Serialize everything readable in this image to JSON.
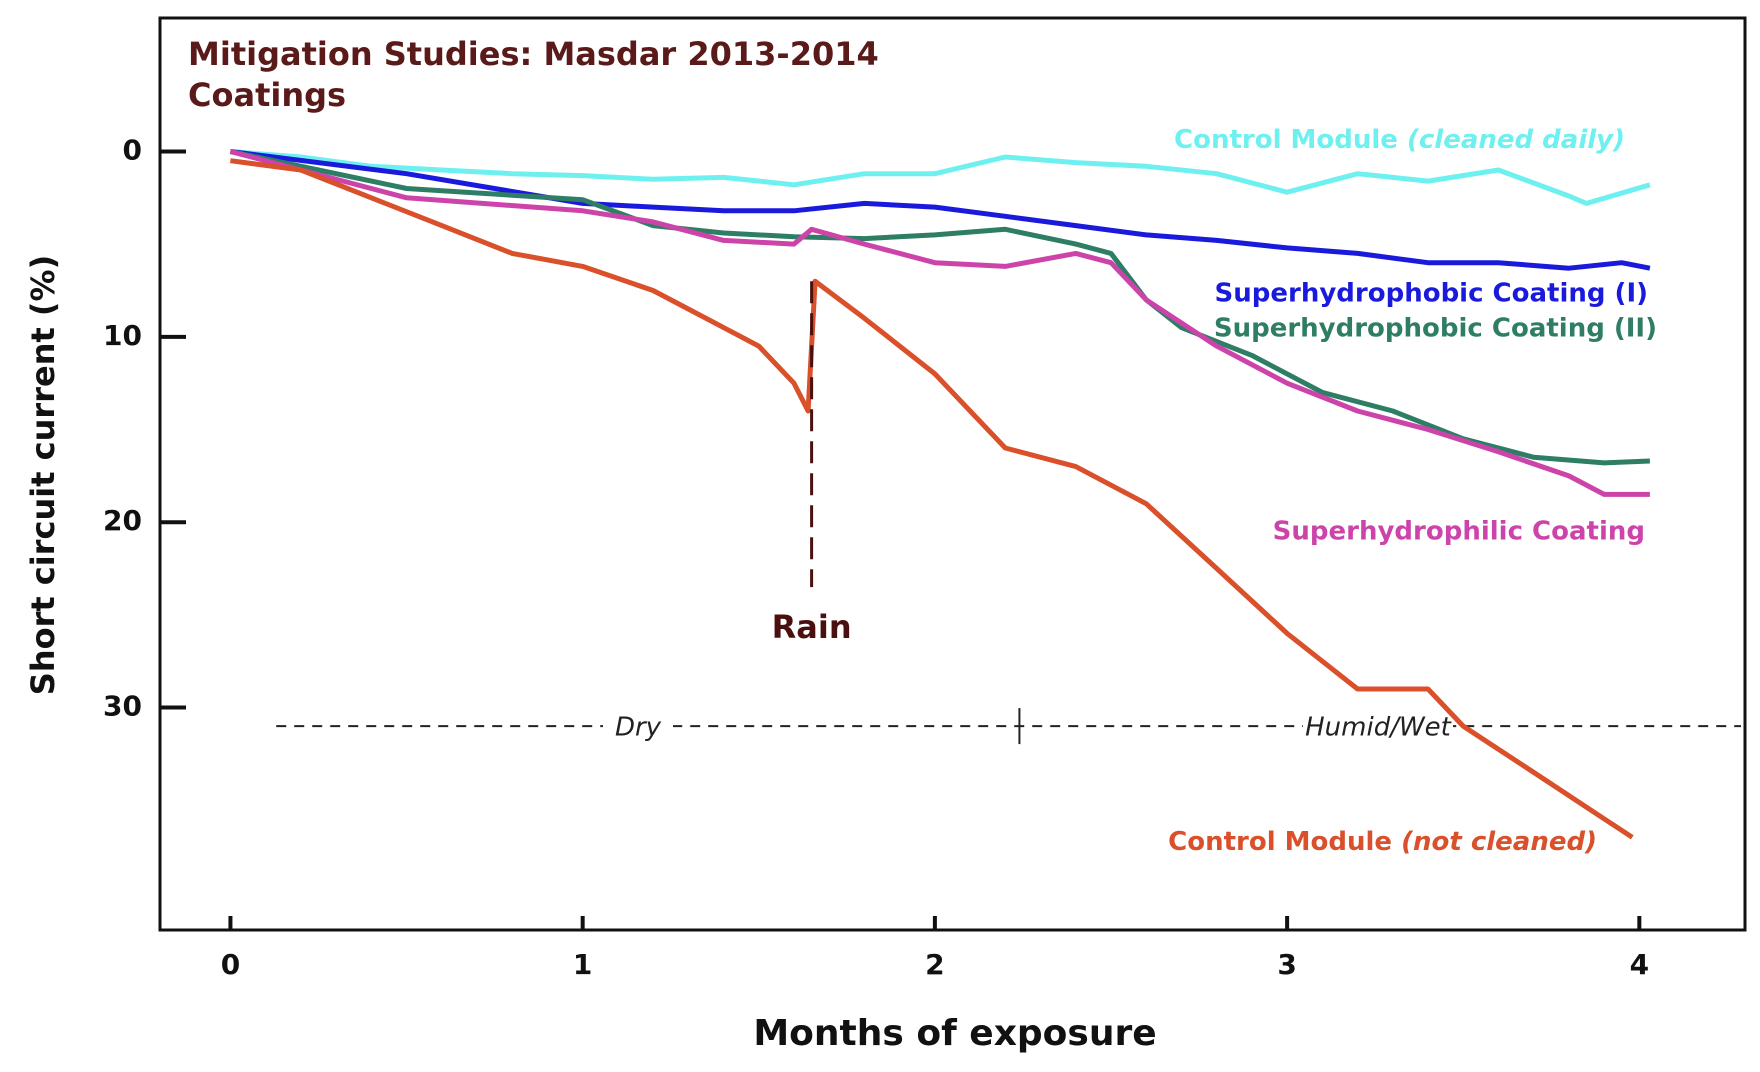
{
  "chart_data": {
    "type": "line",
    "title": "Mitigation Studies: Masdar 2013-2014",
    "subtitle": "Coatings",
    "x_label": "Months of exposure",
    "y_label": "Short circuit current (%)",
    "xlim": [
      -0.2,
      4.3
    ],
    "ylim": [
      -7.2,
      42
    ],
    "y_inverted": true,
    "xticks": [
      0,
      1,
      2,
      3,
      4
    ],
    "yticks": [
      0,
      10,
      20,
      30
    ],
    "rain": {
      "text": "Rain",
      "x": 1.65,
      "y_from": 7,
      "y_to": 23.5
    },
    "seasons": {
      "labels": [
        "Dry",
        "Humid/Wet"
      ],
      "boundary_x": 2.24,
      "y": 31,
      "x_from": 0.13
    },
    "series": [
      {
        "name": "Control Module (cleaned daily)",
        "color": "#6ef0f0",
        "x": [
          0,
          0.2,
          0.4,
          0.6,
          0.8,
          1.0,
          1.2,
          1.4,
          1.6,
          1.8,
          2.0,
          2.2,
          2.4,
          2.6,
          2.8,
          3.0,
          3.2,
          3.4,
          3.6,
          3.8,
          3.85,
          4.03
        ],
        "values": [
          0,
          0.3,
          0.8,
          1,
          1.2,
          1.3,
          1.5,
          1.4,
          1.8,
          1.2,
          1.2,
          0.3,
          0.6,
          0.8,
          1.2,
          2.2,
          1.2,
          1.6,
          1.0,
          2.4,
          2.8,
          1.8
        ]
      },
      {
        "name": "Superhydrophobic Coating (I)",
        "color": "#1a1adc",
        "x": [
          0,
          0.5,
          1.0,
          1.2,
          1.4,
          1.6,
          1.8,
          2.0,
          2.2,
          2.4,
          2.6,
          2.8,
          3.0,
          3.2,
          3.4,
          3.6,
          3.8,
          3.95,
          4.03
        ],
        "values": [
          0,
          1.2,
          2.8,
          3,
          3.2,
          3.2,
          2.8,
          3,
          3.5,
          4,
          4.5,
          4.8,
          5.2,
          5.5,
          6,
          6,
          6.3,
          6,
          6.3
        ]
      },
      {
        "name": "Superhydrophobic Coating (II)",
        "color": "#2e7d65",
        "x": [
          0,
          0.5,
          1.0,
          1.2,
          1.4,
          1.6,
          1.8,
          2.0,
          2.2,
          2.4,
          2.5,
          2.6,
          2.7,
          2.9,
          3.1,
          3.3,
          3.5,
          3.7,
          3.9,
          4.03
        ],
        "values": [
          0,
          2,
          2.6,
          4,
          4.4,
          4.6,
          4.7,
          4.5,
          4.2,
          5,
          5.5,
          8,
          9.5,
          11,
          13,
          14,
          15.5,
          16.5,
          16.8,
          16.7
        ]
      },
      {
        "name": "Superhydrophilic Coating",
        "color": "#cc44aa",
        "x": [
          0,
          0.5,
          1.0,
          1.2,
          1.4,
          1.6,
          1.65,
          1.8,
          2.0,
          2.2,
          2.4,
          2.5,
          2.6,
          2.8,
          3.0,
          3.2,
          3.4,
          3.6,
          3.8,
          3.9,
          4.03
        ],
        "values": [
          0,
          2.5,
          3.2,
          3.8,
          4.8,
          5,
          4.2,
          5,
          6,
          6.2,
          5.5,
          6,
          8,
          10.5,
          12.5,
          14,
          15,
          16.2,
          17.5,
          18.5,
          18.5
        ]
      },
      {
        "name": "Control Module (not cleaned)",
        "color": "#d9502a",
        "x": [
          0,
          0.2,
          0.4,
          0.6,
          0.8,
          1.0,
          1.2,
          1.3,
          1.4,
          1.5,
          1.6,
          1.64,
          1.66,
          1.8,
          2.0,
          2.2,
          2.4,
          2.6,
          2.8,
          3.0,
          3.1,
          3.2,
          3.4,
          3.5,
          3.7,
          3.9,
          3.98
        ],
        "values": [
          0.5,
          1,
          2.5,
          4,
          5.5,
          6.2,
          7.5,
          8.5,
          9.5,
          10.5,
          12.5,
          14,
          7,
          9,
          12,
          16,
          17,
          19,
          22.5,
          26,
          27.5,
          29,
          29,
          31,
          33.5,
          36,
          37
        ]
      }
    ]
  }
}
